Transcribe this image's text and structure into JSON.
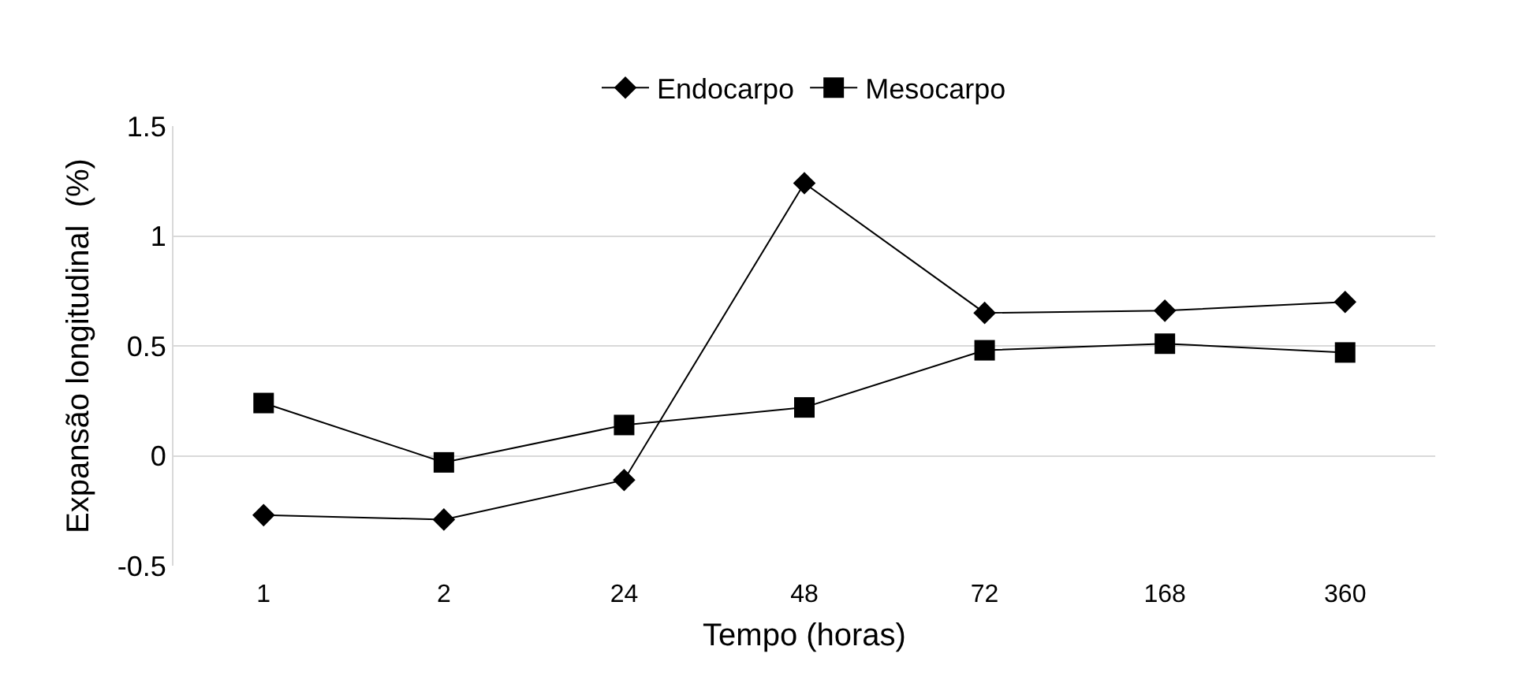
{
  "chart_data": {
    "type": "line",
    "xlabel": "Tempo (horas)",
    "ylabel": "Expansão longitudinal  (%)",
    "categories": [
      "1",
      "2",
      "24",
      "48",
      "72",
      "168",
      "360"
    ],
    "series": [
      {
        "name": "Endocarpo",
        "color": "#000000",
        "marker": "diamond",
        "values": [
          -0.27,
          -0.29,
          -0.11,
          1.24,
          0.65,
          0.66,
          0.7
        ]
      },
      {
        "name": "Mesocarpo",
        "color": "#000000",
        "marker": "square",
        "values": [
          0.24,
          -0.03,
          0.14,
          0.22,
          0.48,
          0.51,
          0.47
        ]
      }
    ],
    "ylim": [
      -0.5,
      1.5
    ],
    "yticks": [
      -0.5,
      0,
      0.5,
      1,
      1.5
    ],
    "grid": "y",
    "legend": "top",
    "line_style": "solid"
  }
}
